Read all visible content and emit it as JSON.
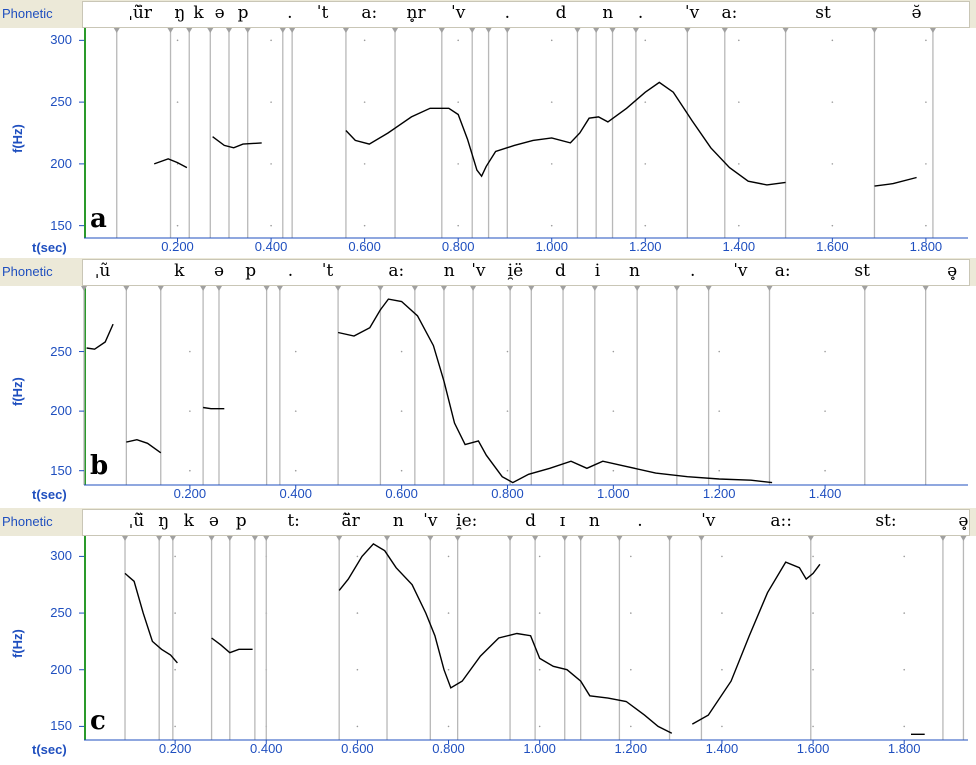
{
  "chart_data": [
    {
      "type": "line",
      "panel_letter": "a",
      "tier_label": "Phonetic",
      "ylabel": "f(Hz)",
      "xlabel": "t(sec)",
      "xlim": [
        0.0,
        1.89
      ],
      "ylim": [
        140,
        310
      ],
      "yticks": [
        "300",
        "250",
        "200",
        "150"
      ],
      "ytick_values": [
        300,
        250,
        200,
        150
      ],
      "xticks": [
        "0.200",
        "0.400",
        "0.600",
        "0.800",
        "1.000",
        "1.200",
        "1.400",
        "1.600",
        "1.800"
      ],
      "xtick_values": [
        0.2,
        0.4,
        0.6,
        0.8,
        1.0,
        1.2,
        1.4,
        1.6,
        1.8
      ],
      "phonetic": [
        {
          "t": 0.12,
          "text": "ˌũ̈r"
        },
        {
          "t": 0.205,
          "text": "ŋ"
        },
        {
          "t": 0.245,
          "text": "k"
        },
        {
          "t": 0.29,
          "text": "ə"
        },
        {
          "t": 0.34,
          "text": "p"
        },
        {
          "t": 0.44,
          "text": "."
        },
        {
          "t": 0.51,
          "text": "ˈt"
        },
        {
          "t": 0.61,
          "text": "a:"
        },
        {
          "t": 0.71,
          "text": "n̥r"
        },
        {
          "t": 0.8,
          "text": "ˈv"
        },
        {
          "t": 0.905,
          "text": "."
        },
        {
          "t": 1.02,
          "text": "d"
        },
        {
          "t": 1.12,
          "text": "n"
        },
        {
          "t": 1.19,
          "text": "."
        },
        {
          "t": 1.3,
          "text": "ˈv"
        },
        {
          "t": 1.38,
          "text": "a:"
        },
        {
          "t": 1.58,
          "text": "st"
        },
        {
          "t": 1.78,
          "text": "ə̆"
        }
      ],
      "boundaries": [
        0.07,
        0.185,
        0.225,
        0.27,
        0.31,
        0.35,
        0.425,
        0.445,
        0.56,
        0.665,
        0.765,
        0.83,
        0.865,
        0.905,
        1.055,
        1.095,
        1.13,
        1.18,
        1.29,
        1.37,
        1.5,
        1.69,
        1.815
      ],
      "series": [
        {
          "points": [
            [
              0.15,
              200
            ],
            [
              0.18,
              204
            ],
            [
              0.2,
              201
            ],
            [
              0.22,
              197
            ]
          ]
        },
        {
          "points": [
            [
              0.275,
              222
            ],
            [
              0.3,
              215
            ],
            [
              0.32,
              213
            ],
            [
              0.34,
              216
            ],
            [
              0.38,
              217
            ]
          ]
        },
        {
          "points": [
            [
              0.56,
              227
            ],
            [
              0.58,
              219
            ],
            [
              0.61,
              216
            ],
            [
              0.65,
              225
            ],
            [
              0.7,
              238
            ],
            [
              0.74,
              245
            ],
            [
              0.78,
              245
            ],
            [
              0.8,
              240
            ],
            [
              0.82,
              220
            ],
            [
              0.84,
              195
            ],
            [
              0.85,
              190
            ],
            [
              0.86,
              198
            ],
            [
              0.88,
              210
            ],
            [
              0.92,
              215
            ],
            [
              0.96,
              219
            ],
            [
              1.0,
              221
            ],
            [
              1.04,
              217
            ],
            [
              1.06,
              225
            ],
            [
              1.08,
              237
            ],
            [
              1.1,
              238
            ],
            [
              1.12,
              234
            ],
            [
              1.16,
              245
            ],
            [
              1.2,
              258
            ],
            [
              1.23,
              266
            ],
            [
              1.26,
              258
            ],
            [
              1.3,
              235
            ],
            [
              1.34,
              213
            ],
            [
              1.38,
              197
            ],
            [
              1.42,
              186
            ],
            [
              1.46,
              183
            ],
            [
              1.5,
              185
            ]
          ]
        },
        {
          "points": [
            [
              1.69,
              182
            ],
            [
              1.73,
              184
            ],
            [
              1.78,
              189
            ]
          ]
        }
      ]
    },
    {
      "type": "line",
      "panel_letter": "b",
      "tier_label": "Phonetic",
      "ylabel": "f(Hz)",
      "xlabel": "t(sec)",
      "xlim": [
        0.0,
        1.67
      ],
      "ylim": [
        138,
        305
      ],
      "yticks": [
        "250",
        "200",
        "150"
      ],
      "ytick_values": [
        250,
        200,
        150
      ],
      "xticks": [
        "0.200",
        "0.400",
        "0.600",
        "0.800",
        "1.000",
        "1.200",
        "1.400"
      ],
      "xtick_values": [
        0.2,
        0.4,
        0.6,
        0.8,
        1.0,
        1.2,
        1.4
      ],
      "phonetic": [
        {
          "t": 0.035,
          "text": "ˌũ"
        },
        {
          "t": 0.18,
          "text": "k"
        },
        {
          "t": 0.255,
          "text": "ə"
        },
        {
          "t": 0.315,
          "text": "p"
        },
        {
          "t": 0.39,
          "text": "."
        },
        {
          "t": 0.46,
          "text": "ˈt"
        },
        {
          "t": 0.59,
          "text": "a:"
        },
        {
          "t": 0.69,
          "text": "n"
        },
        {
          "t": 0.745,
          "text": "ˈv"
        },
        {
          "t": 0.815,
          "text": "i̯ë"
        },
        {
          "t": 0.9,
          "text": "d"
        },
        {
          "t": 0.97,
          "text": "i"
        },
        {
          "t": 1.04,
          "text": "n"
        },
        {
          "t": 1.15,
          "text": "."
        },
        {
          "t": 1.24,
          "text": "ˈv"
        },
        {
          "t": 1.32,
          "text": "a:"
        },
        {
          "t": 1.47,
          "text": "st"
        },
        {
          "t": 1.64,
          "text": "ə̥"
        }
      ],
      "boundaries": [
        0.0,
        0.08,
        0.145,
        0.225,
        0.255,
        0.345,
        0.37,
        0.48,
        0.56,
        0.625,
        0.68,
        0.735,
        0.805,
        0.845,
        0.905,
        0.965,
        1.045,
        1.12,
        1.18,
        1.295,
        1.475,
        1.59
      ],
      "series": [
        {
          "points": [
            [
              0.005,
              253
            ],
            [
              0.02,
              252
            ],
            [
              0.04,
              258
            ],
            [
              0.055,
              273
            ]
          ]
        },
        {
          "points": [
            [
              0.08,
              174
            ],
            [
              0.1,
              176
            ],
            [
              0.12,
              173
            ],
            [
              0.145,
              165
            ]
          ]
        },
        {
          "points": [
            [
              0.225,
              203
            ],
            [
              0.24,
              202
            ],
            [
              0.265,
              202
            ]
          ]
        },
        {
          "points": [
            [
              0.48,
              266
            ],
            [
              0.51,
              263
            ],
            [
              0.54,
              270
            ],
            [
              0.56,
              285
            ],
            [
              0.575,
              294
            ],
            [
              0.6,
              292
            ],
            [
              0.63,
              280
            ],
            [
              0.66,
              255
            ],
            [
              0.68,
              225
            ],
            [
              0.7,
              190
            ],
            [
              0.72,
              172
            ],
            [
              0.745,
              175
            ],
            [
              0.76,
              163
            ],
            [
              0.79,
              145
            ],
            [
              0.81,
              140
            ],
            [
              0.84,
              147
            ],
            [
              0.88,
              152
            ],
            [
              0.92,
              158
            ],
            [
              0.95,
              152
            ],
            [
              0.98,
              158
            ],
            [
              1.02,
              154
            ],
            [
              1.08,
              148
            ],
            [
              1.14,
              145
            ],
            [
              1.2,
              143
            ],
            [
              1.26,
              142
            ],
            [
              1.3,
              140
            ]
          ]
        }
      ]
    },
    {
      "type": "line",
      "panel_letter": "c",
      "tier_label": "Phonetic",
      "ylabel": "f(Hz)",
      "xlabel": "t(sec)",
      "xlim": [
        0.0,
        1.94
      ],
      "ylim": [
        138,
        318
      ],
      "yticks": [
        "300",
        "250",
        "200",
        "150"
      ],
      "ytick_values": [
        300,
        250,
        200,
        150
      ],
      "xticks": [
        "0.200",
        "0.400",
        "0.600",
        "0.800",
        "1.000",
        "1.200",
        "1.400",
        "1.600",
        "1.800"
      ],
      "xtick_values": [
        0.2,
        0.4,
        0.6,
        0.8,
        1.0,
        1.2,
        1.4,
        1.6,
        1.8
      ],
      "phonetic": [
        {
          "t": 0.115,
          "text": "ˌũ̈"
        },
        {
          "t": 0.175,
          "text": "ŋ"
        },
        {
          "t": 0.23,
          "text": "k"
        },
        {
          "t": 0.285,
          "text": "ə"
        },
        {
          "t": 0.345,
          "text": "p"
        },
        {
          "t": 0.46,
          "text": "t:"
        },
        {
          "t": 0.585,
          "text": "ã̈r"
        },
        {
          "t": 0.69,
          "text": "n"
        },
        {
          "t": 0.76,
          "text": "ˈv"
        },
        {
          "t": 0.84,
          "text": "i̯e:"
        },
        {
          "t": 0.98,
          "text": "d"
        },
        {
          "t": 1.05,
          "text": "ɪ"
        },
        {
          "t": 1.12,
          "text": "n"
        },
        {
          "t": 1.22,
          "text": "."
        },
        {
          "t": 1.37,
          "text": "ˈv"
        },
        {
          "t": 1.53,
          "text": "a::"
        },
        {
          "t": 1.76,
          "text": "st:"
        },
        {
          "t": 1.93,
          "text": "ə̥"
        }
      ],
      "boundaries": [
        0.09,
        0.165,
        0.195,
        0.28,
        0.32,
        0.375,
        0.4,
        0.56,
        0.665,
        0.76,
        0.82,
        0.935,
        0.99,
        1.055,
        1.09,
        1.175,
        1.285,
        1.355,
        1.595,
        1.885,
        1.93
      ],
      "series": [
        {
          "points": [
            [
              0.09,
              285
            ],
            [
              0.11,
              278
            ],
            [
              0.13,
              250
            ],
            [
              0.15,
              225
            ],
            [
              0.17,
              218
            ],
            [
              0.19,
              213
            ],
            [
              0.205,
              206
            ]
          ]
        },
        {
          "points": [
            [
              0.28,
              228
            ],
            [
              0.3,
              222
            ],
            [
              0.32,
              215
            ],
            [
              0.34,
              218
            ],
            [
              0.37,
              218
            ]
          ]
        },
        {
          "points": [
            [
              0.56,
              270
            ],
            [
              0.58,
              280
            ],
            [
              0.61,
              300
            ],
            [
              0.635,
              311
            ],
            [
              0.66,
              305
            ],
            [
              0.685,
              290
            ],
            [
              0.72,
              275
            ],
            [
              0.75,
              250
            ],
            [
              0.77,
              230
            ],
            [
              0.79,
              200
            ],
            [
              0.805,
              184
            ],
            [
              0.83,
              190
            ],
            [
              0.87,
              212
            ],
            [
              0.91,
              228
            ],
            [
              0.95,
              232
            ],
            [
              0.98,
              230
            ],
            [
              1.0,
              210
            ],
            [
              1.03,
              203
            ],
            [
              1.06,
              200
            ],
            [
              1.09,
              190
            ],
            [
              1.11,
              177
            ],
            [
              1.15,
              175
            ],
            [
              1.19,
              172
            ],
            [
              1.23,
              160
            ],
            [
              1.26,
              150
            ],
            [
              1.29,
              144
            ]
          ]
        },
        {
          "points": [
            [
              1.335,
              152
            ],
            [
              1.37,
              160
            ],
            [
              1.42,
              190
            ],
            [
              1.46,
              230
            ],
            [
              1.5,
              268
            ],
            [
              1.54,
              295
            ],
            [
              1.57,
              290
            ],
            [
              1.585,
              280
            ],
            [
              1.6,
              285
            ],
            [
              1.615,
              293
            ]
          ]
        },
        {
          "points": [
            [
              1.815,
              143
            ],
            [
              1.845,
              143
            ]
          ]
        }
      ]
    }
  ]
}
